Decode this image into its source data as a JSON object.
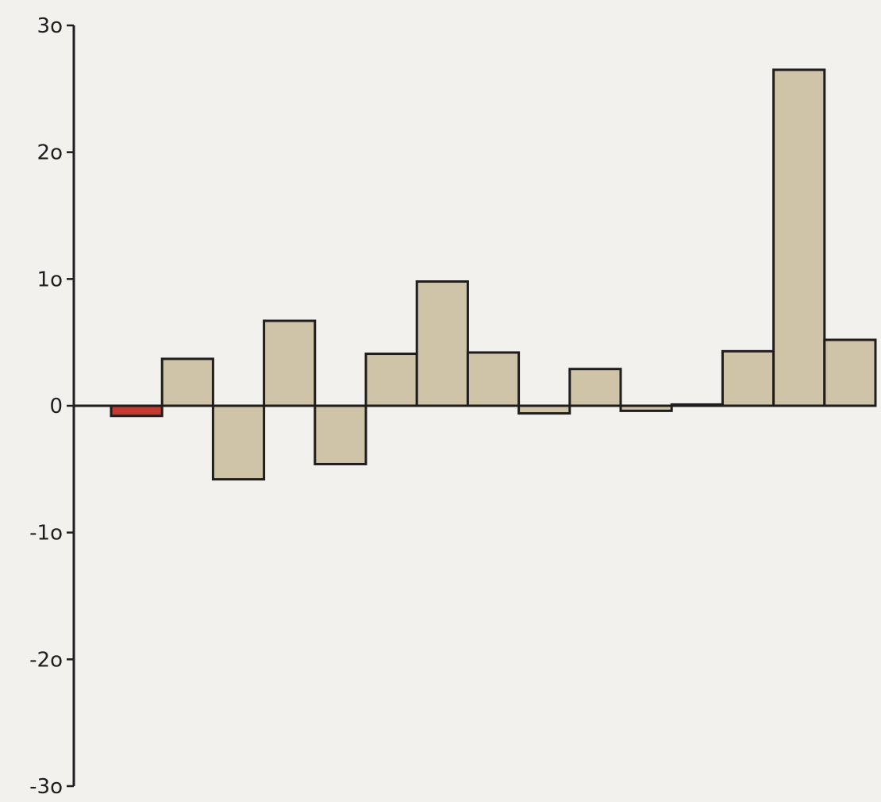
{
  "chart_data": {
    "type": "bar",
    "title": "",
    "xlabel": "",
    "ylabel": "",
    "ylim": [
      -3,
      3
    ],
    "yticks": [
      {
        "value": 3,
        "label": "3o"
      },
      {
        "value": 2,
        "label": "2o"
      },
      {
        "value": 1,
        "label": "1o"
      },
      {
        "value": 0,
        "label": "0"
      },
      {
        "value": -1,
        "label": "-1o"
      },
      {
        "value": -2,
        "label": "-2o"
      },
      {
        "value": -3,
        "label": "-3o"
      }
    ],
    "grid": false,
    "colors": {
      "bar": "#cfc3a8",
      "highlight": "#c43a32",
      "stroke": "#1e1e1e",
      "background": "#f3f1ee"
    },
    "values": [
      -0.08,
      0.37,
      -0.58,
      0.67,
      -0.46,
      0.41,
      0.98,
      0.42,
      -0.06,
      0.29,
      -0.04,
      0.01,
      0.43,
      2.65,
      0.52
    ],
    "highlight_index": 0
  }
}
